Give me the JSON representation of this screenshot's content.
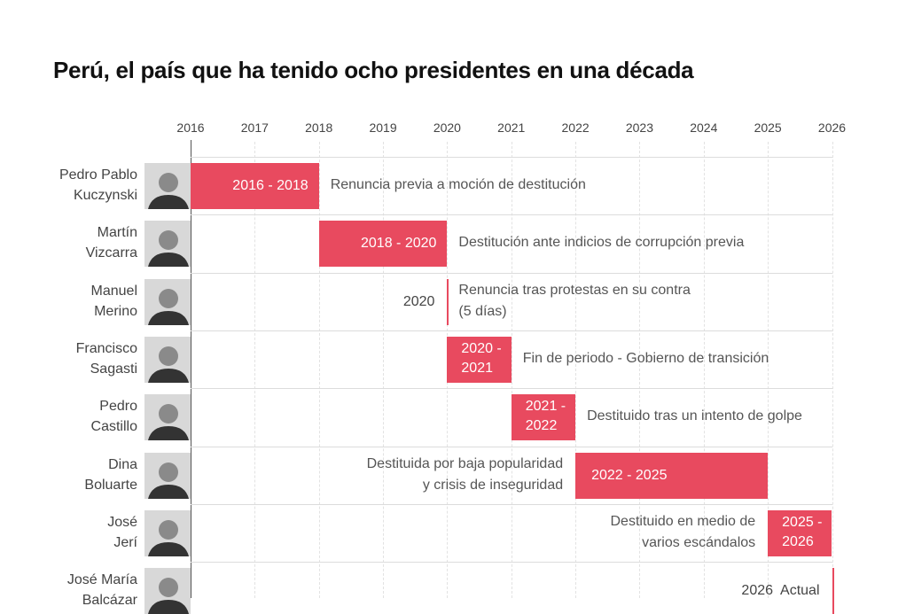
{
  "chart_data": {
    "type": "timeline",
    "title": "Perú, el país que ha tenido ocho presidentes en una década",
    "x_ticks": [
      "2016",
      "2017",
      "2018",
      "2019",
      "2020",
      "2021",
      "2022",
      "2023",
      "2024",
      "2025",
      "2026"
    ],
    "xlim": [
      2016,
      2026
    ],
    "grid": true,
    "bar_color": "#e84a5f",
    "rows": [
      {
        "name_line1": "Pedro Pablo",
        "name_line2": "Kuczynski",
        "start": 2016,
        "end": 2018,
        "bar_label": "2016 - 2018",
        "note": "Renuncia previa a moción de destitución"
      },
      {
        "name_line1": "Martín",
        "name_line2": "Vizcarra",
        "start": 2018,
        "end": 2020,
        "bar_label": "2018 - 2020",
        "note": "Destitución ante indicios de corrupción previa"
      },
      {
        "name_line1": "Manuel",
        "name_line2": "Merino",
        "start": 2020,
        "end": 2020,
        "bar_label": "2020",
        "note": "Renuncia tras protestas en su contra\n(5 días)"
      },
      {
        "name_line1": "Francisco",
        "name_line2": "Sagasti",
        "start": 2020,
        "end": 2021,
        "bar_label": "2020 -\n2021",
        "note": "Fin de periodo - Gobierno de transición"
      },
      {
        "name_line1": "Pedro",
        "name_line2": "Castillo",
        "start": 2021,
        "end": 2022,
        "bar_label": "2021 -\n2022",
        "note": "Destituido tras un intento de golpe"
      },
      {
        "name_line1": "Dina",
        "name_line2": "Boluarte",
        "start": 2022,
        "end": 2025,
        "bar_label": "2022 - 2025",
        "note": "Destituida por baja popularidad\ny crisis de inseguridad"
      },
      {
        "name_line1": "José",
        "name_line2": "Jerí",
        "start": 2025,
        "end": 2026,
        "bar_label": "2025 -\n2026",
        "note": "Destituido en medio de\nvarios escándalos"
      },
      {
        "name_line1": "José María",
        "name_line2": "Balcázar",
        "start": 2026,
        "end": 2026,
        "bar_label": "2026  Actual",
        "note": ""
      }
    ]
  }
}
